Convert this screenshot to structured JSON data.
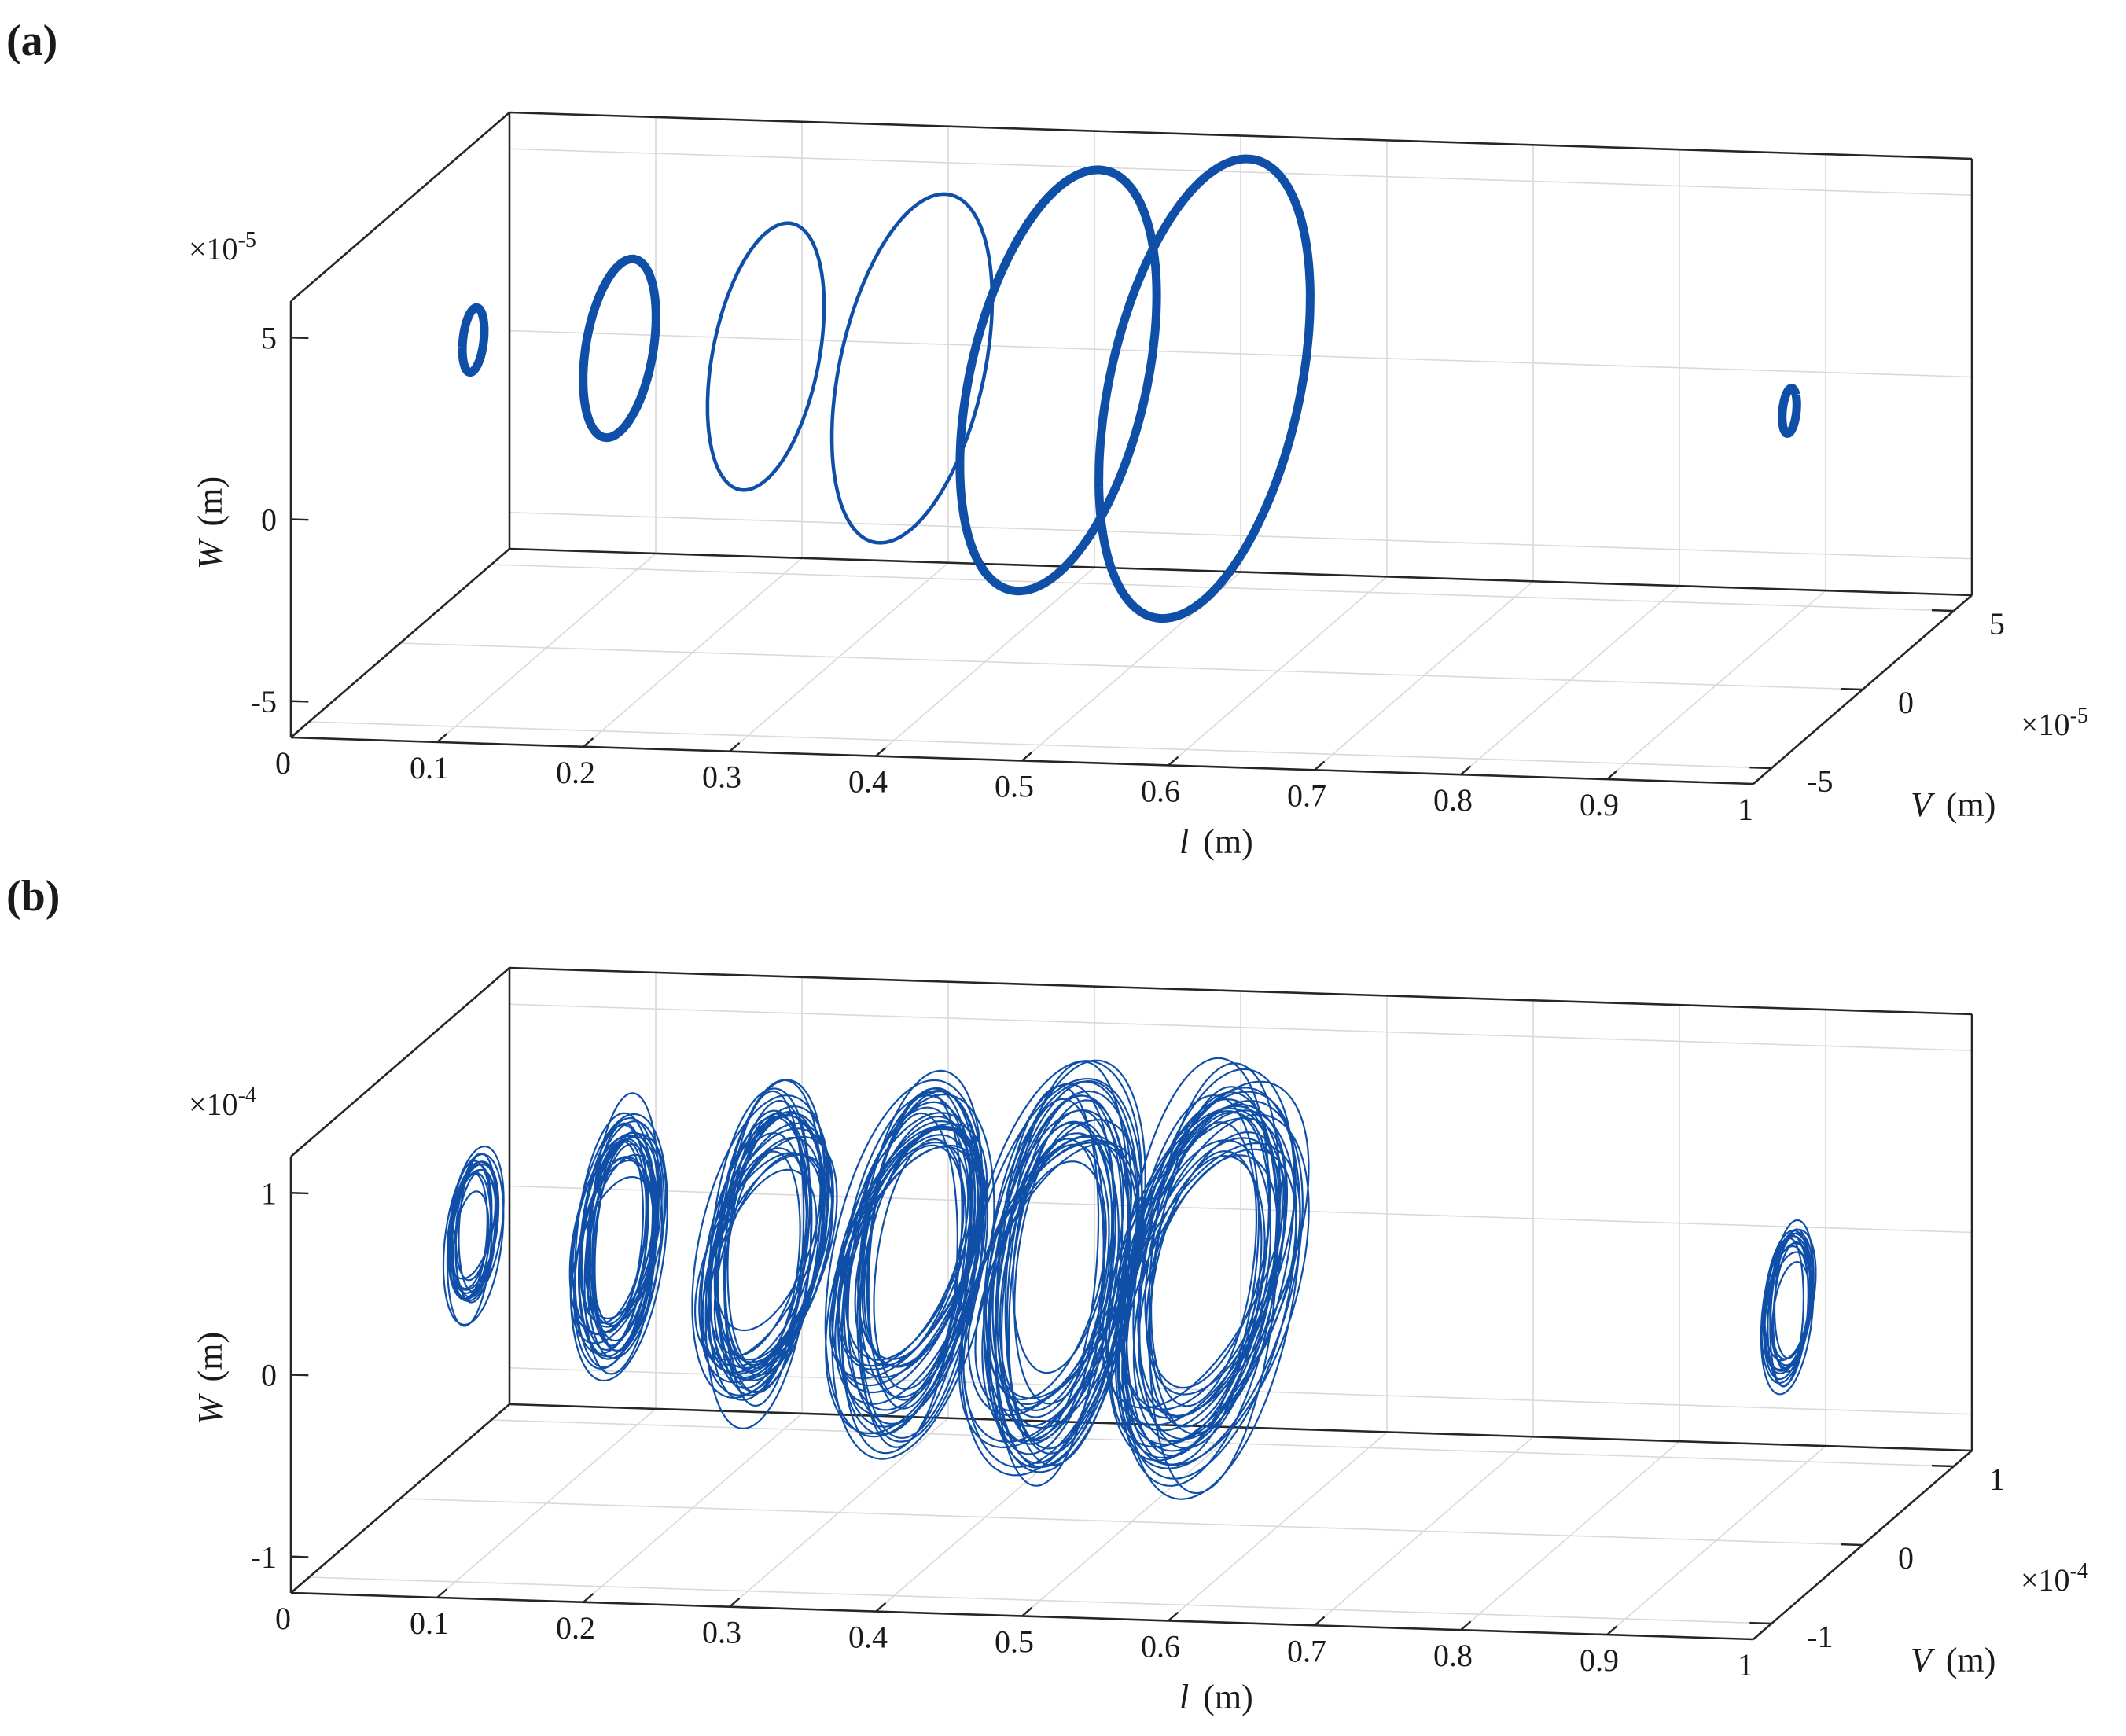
{
  "chart_data": [
    {
      "panel": "(a)",
      "type": "line",
      "xlabel": "l",
      "xlabel_unit": "(m)",
      "ylabel": "V",
      "ylabel_unit": "(m)",
      "zlabel": "W",
      "zlabel_unit": "(m)",
      "x_ticks": [
        "0",
        "0.1",
        "0.2",
        "0.3",
        "0.4",
        "0.5",
        "0.6",
        "0.7",
        "0.8",
        "0.9",
        "1"
      ],
      "y_ticks": [
        "-5",
        "0",
        "5"
      ],
      "z_ticks": [
        "-5",
        "0",
        "5"
      ],
      "y_exponent": "-5",
      "z_exponent": "-5",
      "xlim": [
        0,
        1
      ],
      "ylim": [
        -6e-05,
        6e-05
      ],
      "zlim": [
        -6e-05,
        6e-05
      ],
      "grid": true,
      "color": "#0f4fa8",
      "series": [
        {
          "l": 0.05,
          "v_amp": 6e-06,
          "w_center": 2.4e-05,
          "w_amp": 8.5e-06,
          "thick": true,
          "turns": 1
        },
        {
          "l": 0.15,
          "v_amp": 2e-05,
          "w_center": 2.3e-05,
          "w_amp": 2.3e-05,
          "thick": true,
          "turns": 1
        },
        {
          "l": 0.25,
          "v_amp": 3.2e-05,
          "w_center": 2.2e-05,
          "w_amp": 3.4e-05,
          "thick": false,
          "turns": 1
        },
        {
          "l": 0.35,
          "v_amp": 4.4e-05,
          "w_center": 2e-05,
          "w_amp": 4.4e-05,
          "thick": false,
          "turns": 1
        },
        {
          "l": 0.45,
          "v_amp": 5.4e-05,
          "w_center": 1.8e-05,
          "w_amp": 5.3e-05,
          "thick": true,
          "turns": 1
        },
        {
          "l": 0.55,
          "v_amp": 5.8e-05,
          "w_center": 1.7e-05,
          "w_amp": 5.8e-05,
          "thick": true,
          "turns": 1
        },
        {
          "l": 0.95,
          "v_amp": 4e-06,
          "w_center": 1.6e-05,
          "w_amp": 6e-06,
          "thick": true,
          "turns": 1
        }
      ]
    },
    {
      "panel": "(b)",
      "type": "line",
      "xlabel": "l",
      "xlabel_unit": "(m)",
      "ylabel": "V",
      "ylabel_unit": "(m)",
      "zlabel": "W",
      "zlabel_unit": "(m)",
      "x_ticks": [
        "0",
        "0.1",
        "0.2",
        "0.3",
        "0.4",
        "0.5",
        "0.6",
        "0.7",
        "0.8",
        "0.9",
        "1"
      ],
      "y_ticks": [
        "-1",
        "0",
        "1"
      ],
      "z_ticks": [
        "-1",
        "0",
        "1"
      ],
      "y_exponent": "-4",
      "z_exponent": "-4",
      "xlim": [
        0,
        1
      ],
      "ylim": [
        -0.00012,
        0.00012
      ],
      "zlim": [
        -0.00012,
        0.00012
      ],
      "grid": true,
      "color": "#0f4fa8",
      "series": [
        {
          "l": 0.05,
          "v_amp": 3.5e-05,
          "w_center": 2.8e-05,
          "w_amp": 4.5e-05,
          "thick": false,
          "turns": 14
        },
        {
          "l": 0.15,
          "v_amp": 5.5e-05,
          "w_center": 2.5e-05,
          "w_amp": 7e-05,
          "thick": false,
          "turns": 22
        },
        {
          "l": 0.25,
          "v_amp": 7.5e-05,
          "w_center": 2.2e-05,
          "w_amp": 8.5e-05,
          "thick": false,
          "turns": 26
        },
        {
          "l": 0.35,
          "v_amp": 9e-05,
          "w_center": 2e-05,
          "w_amp": 9.5e-05,
          "thick": false,
          "turns": 28
        },
        {
          "l": 0.45,
          "v_amp": 0.0001,
          "w_center": 1.8e-05,
          "w_amp": 0.000105,
          "thick": false,
          "turns": 28
        },
        {
          "l": 0.55,
          "v_amp": 0.000105,
          "w_center": 1.6e-05,
          "w_amp": 0.00011,
          "thick": false,
          "turns": 28
        },
        {
          "l": 0.95,
          "v_amp": 3e-05,
          "w_center": 1.2e-05,
          "w_amp": 4.5e-05,
          "thick": false,
          "turns": 14
        }
      ]
    }
  ]
}
